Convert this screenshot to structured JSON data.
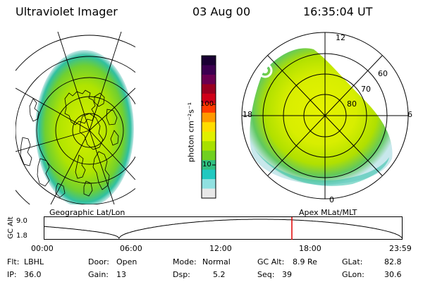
{
  "header": {
    "instrument": "Ultraviolet Imager",
    "date": "03 Aug 00",
    "time": "16:35:04 UT"
  },
  "geo_panel": {
    "label": "Geographic Lat/Lon"
  },
  "mag_panel": {
    "label": "Apex MLat/MLT",
    "mlt_labels": {
      "top": "12",
      "left": "18",
      "right": "6",
      "bottom": "0"
    },
    "lat_labels": [
      "80",
      "70",
      "60"
    ]
  },
  "colorbar": {
    "units_label": "photon cm⁻²s⁻¹",
    "ticks": [
      "100",
      "10"
    ],
    "colors": [
      "#1a0033",
      "#3c0050",
      "#6a0050",
      "#9a0020",
      "#d00018",
      "#ff3a00",
      "#ff9900",
      "#ffdd00",
      "#e0f000",
      "#a8e000",
      "#70d020",
      "#30c080",
      "#20c8c0",
      "#90e0e0",
      "#e8e8e8"
    ]
  },
  "altitude_plot": {
    "y_axis_label": "GC Alt",
    "y_ticks": [
      "9.0",
      "1.8"
    ],
    "x_ticks": [
      "00:00",
      "06:00",
      "12:00",
      "18:00",
      "23:59"
    ],
    "marker_time_hours": 16.585,
    "marker_color": "#e00000"
  },
  "status": {
    "flt_label": "Flt:",
    "flt_value": "LBHL",
    "ip_label": "IP:",
    "ip_value": "36.0",
    "door_label": "Door:",
    "door_value": "Open",
    "gain_label": "Gain:",
    "gain_value": "13",
    "mode_label": "Mode:",
    "mode_value": "Normal",
    "dsp_label": "Dsp:",
    "dsp_value": "5.2",
    "gcalt_label": "GC Alt:",
    "gcalt_value": "8.9 Re",
    "seq_label": "Seq:",
    "seq_value": "39",
    "glat_label": "GLat:",
    "glat_value": "82.8",
    "glon_label": "GLon:",
    "glon_value": "30.6"
  }
}
